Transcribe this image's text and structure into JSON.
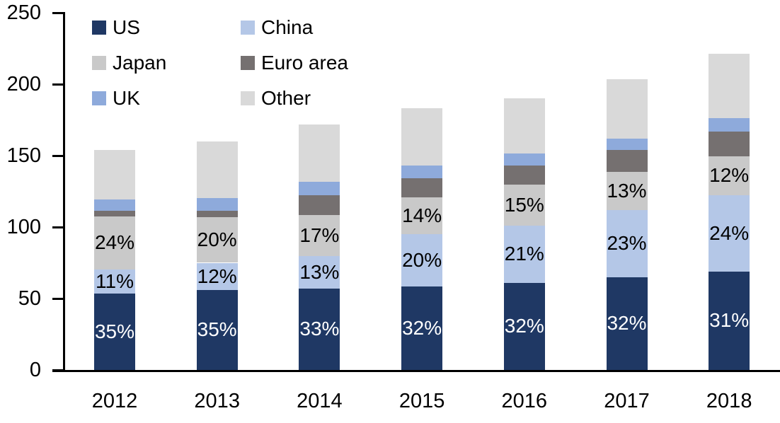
{
  "chart_data": {
    "type": "bar",
    "stacked": true,
    "title": "",
    "categories": [
      "2012",
      "2013",
      "2014",
      "2015",
      "2016",
      "2017",
      "2018"
    ],
    "series": [
      {
        "name": "US",
        "color": "#1F3864",
        "values": [
          53.5,
          56,
          57,
          58.5,
          61,
          65,
          69
        ],
        "data_labels": [
          "35%",
          "35%",
          "33%",
          "32%",
          "32%",
          "32%",
          "31%"
        ],
        "data_label_color": "#FFFFFF"
      },
      {
        "name": "China",
        "color": "#B4C7E7",
        "values": [
          17,
          19,
          22.5,
          36.5,
          40,
          47,
          53.5
        ],
        "data_labels": [
          "11%",
          "12%",
          "13%",
          "20%",
          "21%",
          "23%",
          "24%"
        ],
        "data_label_color": "#000000"
      },
      {
        "name": "Japan",
        "color": "#C9C9C9",
        "values": [
          37,
          32,
          29,
          26,
          28.5,
          26.5,
          27
        ],
        "data_labels": [
          "24%",
          "20%",
          "17%",
          "14%",
          "15%",
          "13%",
          "12%"
        ],
        "data_label_color": "#000000"
      },
      {
        "name": "Euro area",
        "color": "#757070",
        "values": [
          4,
          4.5,
          14,
          13,
          13.5,
          15.5,
          17.5
        ],
        "data_labels": null
      },
      {
        "name": "UK",
        "color": "#8EAADB",
        "values": [
          8,
          9,
          9,
          9,
          8.5,
          8,
          9
        ],
        "data_labels": null
      },
      {
        "name": "Other",
        "color": "#D9D9D9",
        "values": [
          34.5,
          39.5,
          40.5,
          40,
          38.5,
          41.5,
          45.5
        ],
        "data_labels": null
      }
    ],
    "totals_approx": [
      154,
      160,
      172,
      183,
      190,
      203.5,
      221.5
    ],
    "y_axis": {
      "min": 0,
      "max": 250,
      "tick_step": 50,
      "tick_labels": [
        "0",
        "50",
        "100",
        "150",
        "200",
        "250"
      ]
    },
    "x_axis": {
      "tick_labels": [
        "2012",
        "2013",
        "2014",
        "2015",
        "2016",
        "2017",
        "2018"
      ]
    },
    "legend": {
      "position": "top-left",
      "columns": 2,
      "entries": [
        "US",
        "China",
        "Japan",
        "Euro area",
        "UK",
        "Other"
      ]
    },
    "grid": false,
    "background": "#FFFFFF"
  }
}
